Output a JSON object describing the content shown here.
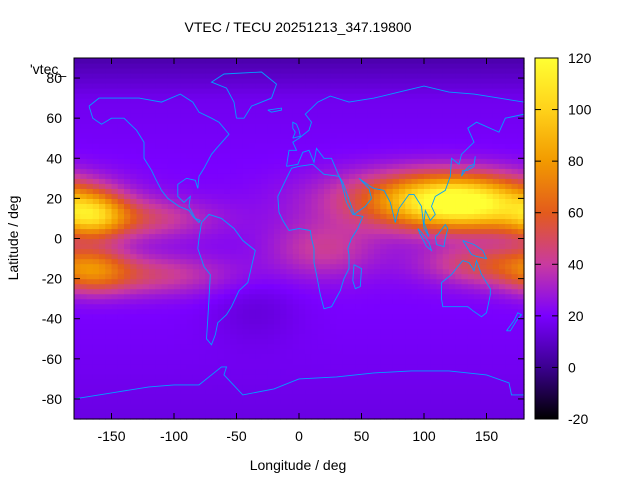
{
  "title": "VTEC / TECU 20251213_347.19800",
  "chart_data": {
    "type": "heatmap",
    "title": "VTEC / TECU 20251213_347.19800",
    "xlabel": "Longitude / deg",
    "ylabel": "Latitude / deg",
    "xlim": [
      -180,
      180
    ],
    "ylim": [
      -90,
      90
    ],
    "xticks": [
      -150,
      -100,
      -50,
      0,
      50,
      100,
      150
    ],
    "xtick_labels": [
      "-150",
      "-100",
      "-50",
      "0",
      "50",
      "100",
      "150"
    ],
    "yticks": [
      -80,
      -60,
      -40,
      -20,
      0,
      20,
      40,
      60,
      80
    ],
    "ytick_labels": [
      "-80",
      "-60",
      "-40",
      "-20",
      "0",
      "20",
      "40",
      "60",
      "80"
    ],
    "colorbar": {
      "range": [
        -20,
        120
      ],
      "ticks": [
        -20,
        0,
        20,
        40,
        60,
        80,
        100,
        120
      ],
      "tick_labels": [
        "-20",
        "0",
        "20",
        "40",
        "60",
        "80",
        "100",
        "120"
      ],
      "colormap": [
        "#000000",
        "#3b008f",
        "#7a00ff",
        "#c93aa0",
        "#e35b1c",
        "#f29a00",
        "#ffd21a",
        "#ffff33"
      ]
    },
    "legend_text": "'vtec_",
    "coastline_color": "#00a0ff",
    "grid": false,
    "field": {
      "background_tecu": 18,
      "features": [
        {
          "lon": 130,
          "lat": 18,
          "lon_width": 40,
          "lat_width": 9,
          "peak_tecu": 78
        },
        {
          "lon": 100,
          "lat": 20,
          "lon_width": 55,
          "lat_width": 10,
          "peak_tecu": 40
        },
        {
          "lon": 150,
          "lat": -12,
          "lon_width": 35,
          "lat_width": 7,
          "peak_tecu": 28
        },
        {
          "lon": 20,
          "lat": -5,
          "lon_width": 30,
          "lat_width": 10,
          "peak_tecu": 20
        },
        {
          "lon": -165,
          "lat": 12,
          "lon_width": 18,
          "lat_width": 8,
          "peak_tecu": 45
        },
        {
          "lon": -140,
          "lat": 10,
          "lon_width": 45,
          "lat_width": 7,
          "peak_tecu": 28
        },
        {
          "lon": -165,
          "lat": -15,
          "lon_width": 20,
          "lat_width": 8,
          "peak_tecu": 30
        },
        {
          "lon": -130,
          "lat": -18,
          "lon_width": 50,
          "lat_width": 7,
          "peak_tecu": 25
        },
        {
          "lon": -35,
          "lat": -35,
          "lon_width": 25,
          "lat_width": 12,
          "peak_tecu": -6
        }
      ]
    }
  }
}
